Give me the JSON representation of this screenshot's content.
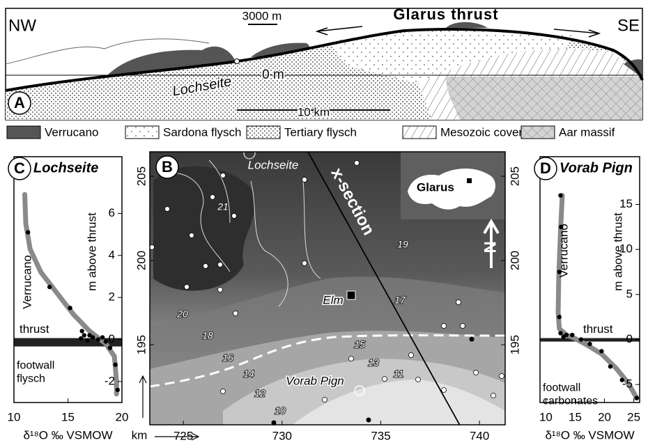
{
  "cross_section": {
    "panel": "A",
    "left": "NW",
    "right": "SE",
    "title": "Glarus thrust",
    "scale_vertical": "3000 m",
    "place": "Lochseite",
    "datum": "0 m",
    "scale_horizontal": "10 km"
  },
  "legend": [
    "Verrucano",
    "Sardona flysch",
    "Tertiary flysch",
    "Mesozoic cover",
    "Aar massif"
  ],
  "map": {
    "panel": "B",
    "places": [
      "Lochseite",
      "Elm",
      "Vorab Pign"
    ],
    "section_label": "x-section",
    "inset_label": "Glarus",
    "north": "N",
    "x_unit": "km",
    "contour_labels": [
      21,
      20,
      19,
      18,
      17,
      16,
      15,
      14,
      13,
      12,
      11,
      10
    ],
    "xlim": [
      723.3,
      741.3
    ],
    "xticks": [
      725,
      730,
      735,
      740
    ],
    "ylim": [
      190.25,
      206.45
    ],
    "yticks": [
      195,
      200,
      205
    ]
  },
  "chart_data": [
    {
      "type": "line",
      "panel": "C",
      "title": "Lochseite",
      "xlabel": "δ¹⁸O ‰ VSMOW",
      "ylabel": "m above thrust",
      "annotations": [
        "Verrucano",
        "thrust",
        "footwall flysch"
      ],
      "xlim": [
        10,
        20
      ],
      "xticks": [
        10,
        15,
        20
      ],
      "ylim": [
        -3,
        8.7
      ],
      "yticks": [
        -2,
        0,
        2,
        4,
        6
      ],
      "series": [
        {
          "style": "line",
          "color": "#8a8a8a",
          "x": [
            11,
            11.1,
            11.5,
            12.5,
            14,
            15.5,
            17,
            18.5,
            19.3,
            19.5,
            19.5
          ],
          "values": [
            6.9,
            5.5,
            4.3,
            3.2,
            2.2,
            1.2,
            0.4,
            -0.2,
            -0.8,
            -2,
            -2.6
          ]
        },
        {
          "style": "points",
          "color": "#000000",
          "x": [
            11.3,
            13.3,
            15.2,
            16.3,
            16.5,
            17,
            17.3,
            16.2,
            16.8,
            17.8,
            18.2,
            18.5,
            18.9,
            19.4,
            19.6
          ],
          "values": [
            5.1,
            2.5,
            1.5,
            0.4,
            0.2,
            0.2,
            0.1,
            0.05,
            -0.05,
            0,
            0.1,
            -0.1,
            -0.4,
            -1.2,
            -2.4
          ]
        }
      ]
    },
    {
      "type": "line",
      "panel": "D",
      "title": "Vorab Pign",
      "xlabel": "δ¹⁸O ‰ VSMOW",
      "ylabel": "m above thrust",
      "annotations": [
        "Verrucano",
        "thrust",
        "footwall carbonates"
      ],
      "xlim": [
        9,
        26
      ],
      "xticks": [
        10,
        15,
        20,
        25
      ],
      "ylim": [
        -7,
        20.3
      ],
      "yticks": [
        -5,
        0,
        5,
        10,
        15
      ],
      "series": [
        {
          "style": "line",
          "color": "#8a8a8a",
          "x": [
            12.8,
            12.5,
            12.2,
            12.1,
            12.3,
            13.5,
            15,
            17,
            19.5,
            22,
            24,
            25.5
          ],
          "values": [
            16,
            12,
            7,
            3,
            1.2,
            0.5,
            0.1,
            -0.6,
            -1.6,
            -3.2,
            -4.8,
            -6.5
          ]
        },
        {
          "style": "points",
          "color": "#000000",
          "x": [
            12.5,
            12.6,
            12.3,
            12.3,
            12.5,
            13.5,
            13,
            14.5,
            16,
            17.5,
            19.5,
            21,
            23,
            25.5
          ],
          "values": [
            16,
            12.5,
            7.5,
            2.5,
            0.7,
            0.5,
            0.3,
            0.5,
            0,
            -0.5,
            -1.3,
            -3,
            -4.5,
            -6.5
          ]
        }
      ]
    }
  ]
}
